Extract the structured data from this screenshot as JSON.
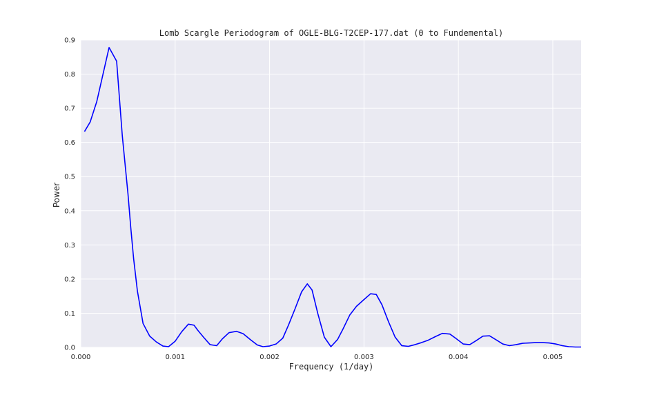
{
  "chart_data": {
    "type": "line",
    "title": "Lomb Scargle Periodogram of OGLE-BLG-T2CEP-177.dat (0 to Fundemental)",
    "xlabel": "Frequency (1/day)",
    "ylabel": "Power",
    "xlim": [
      0,
      0.0053
    ],
    "ylim": [
      0,
      0.9
    ],
    "xticks": [
      "0.000",
      "0.001",
      "0.002",
      "0.003",
      "0.004",
      "0.005"
    ],
    "yticks": [
      "0.0",
      "0.1",
      "0.2",
      "0.3",
      "0.4",
      "0.5",
      "0.6",
      "0.7",
      "0.8",
      "0.9"
    ],
    "grid": true,
    "colors": {
      "background": "#EAEAF2",
      "grid": "#FFFFFF",
      "line": "#0000FF"
    },
    "series": [
      {
        "x": [
          4e-05,
          0.0001,
          0.00017,
          0.00024,
          0.0003,
          0.00038,
          0.00044,
          0.0005,
          0.00053,
          0.00056,
          0.0006,
          0.00066,
          0.00073,
          0.0008,
          0.00087,
          0.00093,
          0.001,
          0.00107,
          0.00114,
          0.0012,
          0.00124,
          0.0013,
          0.00137,
          0.00144,
          0.0015,
          0.00157,
          0.00165,
          0.00172,
          0.0018,
          0.00187,
          0.00193,
          0.002,
          0.00207,
          0.00214,
          0.0022,
          0.00227,
          0.00234,
          0.0024,
          0.00245,
          0.00251,
          0.00258,
          0.00265,
          0.00272,
          0.00278,
          0.00285,
          0.00292,
          0.003,
          0.00307,
          0.00313,
          0.00319,
          0.00326,
          0.00333,
          0.0034,
          0.00347,
          0.00354,
          0.00361,
          0.00368,
          0.00376,
          0.00383,
          0.00391,
          0.00398,
          0.00405,
          0.00412,
          0.00419,
          0.00426,
          0.00433,
          0.0044,
          0.00447,
          0.00454,
          0.00461,
          0.00468,
          0.00475,
          0.00482,
          0.00489,
          0.00496,
          0.00503,
          0.0051,
          0.00517,
          0.00524,
          0.0053
        ],
        "y": [
          0.632,
          0.66,
          0.72,
          0.805,
          0.878,
          0.838,
          0.62,
          0.45,
          0.35,
          0.26,
          0.165,
          0.07,
          0.033,
          0.016,
          0.004,
          0.002,
          0.018,
          0.046,
          0.068,
          0.065,
          0.05,
          0.03,
          0.008,
          0.005,
          0.025,
          0.043,
          0.047,
          0.04,
          0.022,
          0.007,
          0.002,
          0.004,
          0.01,
          0.027,
          0.065,
          0.113,
          0.163,
          0.186,
          0.168,
          0.1,
          0.03,
          0.002,
          0.023,
          0.055,
          0.095,
          0.12,
          0.14,
          0.157,
          0.155,
          0.125,
          0.075,
          0.03,
          0.005,
          0.003,
          0.008,
          0.014,
          0.021,
          0.032,
          0.041,
          0.039,
          0.025,
          0.01,
          0.008,
          0.02,
          0.033,
          0.034,
          0.022,
          0.01,
          0.005,
          0.008,
          0.012,
          0.013,
          0.014,
          0.014,
          0.013,
          0.01,
          0.005,
          0.002,
          0.001,
          0.001
        ]
      }
    ]
  }
}
